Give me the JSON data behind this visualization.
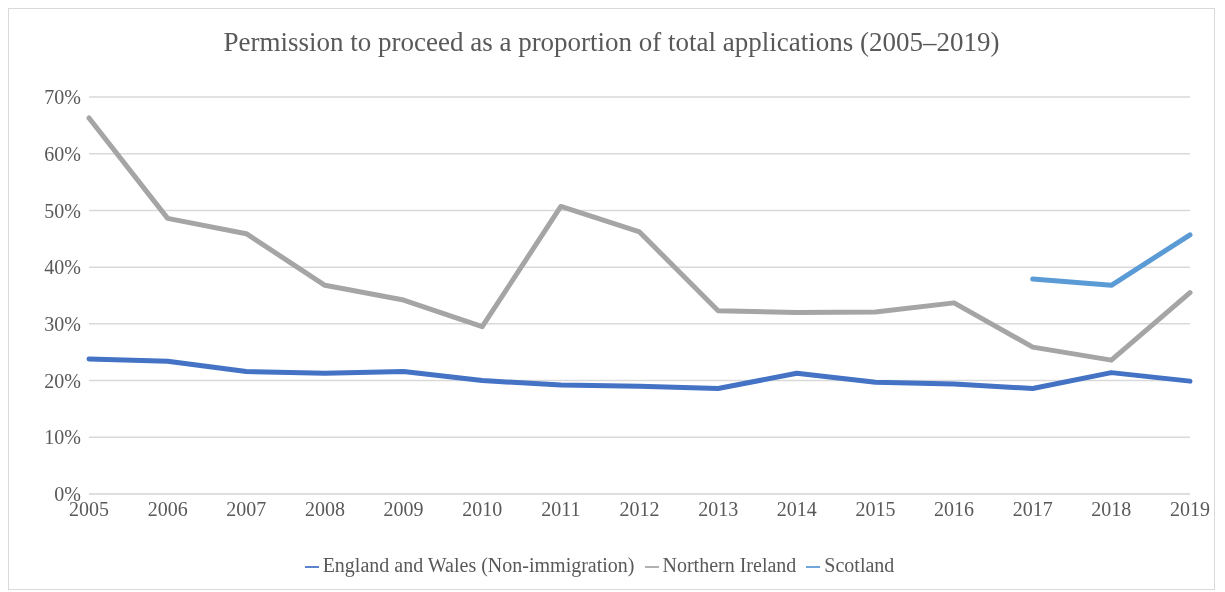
{
  "chart_data": {
    "type": "line",
    "title": "Permission to proceed as a proportion of total applications (2005–2019)",
    "categories": [
      "2005",
      "2006",
      "2007",
      "2008",
      "2009",
      "2010",
      "2011",
      "2012",
      "2013",
      "2014",
      "2015",
      "2016",
      "2017",
      "2018",
      "2019"
    ],
    "series": [
      {
        "name": "England and Wales (Non-immigration)",
        "color": "#4472c4",
        "values": [
          23.8,
          23.4,
          21.6,
          21.3,
          21.6,
          20.0,
          19.2,
          19.0,
          18.6,
          21.3,
          19.7,
          19.4,
          18.6,
          21.4,
          19.9
        ]
      },
      {
        "name": "Northern Ireland",
        "color": "#a5a5a5",
        "values": [
          66.3,
          48.6,
          45.9,
          36.8,
          34.2,
          29.5,
          50.7,
          46.2,
          32.3,
          32.0,
          32.1,
          33.7,
          25.9,
          23.6,
          35.5
        ]
      },
      {
        "name": "Scotland",
        "color": "#5b9bd5",
        "values": [
          null,
          null,
          null,
          null,
          null,
          null,
          null,
          null,
          null,
          null,
          null,
          null,
          37.9,
          36.8,
          45.7
        ]
      }
    ],
    "ylim": [
      0,
      70
    ],
    "yticks": [
      {
        "value": 0,
        "label": "0%"
      },
      {
        "value": 10,
        "label": "10%"
      },
      {
        "value": 20,
        "label": "20%"
      },
      {
        "value": 30,
        "label": "30%"
      },
      {
        "value": 40,
        "label": "40%"
      },
      {
        "value": 50,
        "label": "50%"
      },
      {
        "value": 60,
        "label": "60%"
      },
      {
        "value": 70,
        "label": "70%"
      }
    ],
    "grid": "y",
    "legend": "bottom",
    "marker": "none",
    "line_style": "solid"
  }
}
